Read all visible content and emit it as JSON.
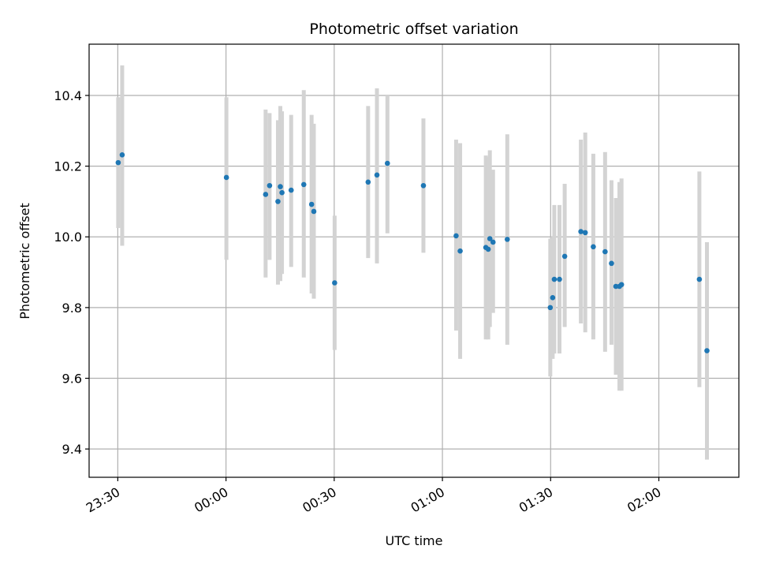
{
  "chart_data": {
    "type": "scatter",
    "title": "Photometric offset variation",
    "xlabel": "UTC time",
    "ylabel": "Photometric offset",
    "x_unit": "UTC time (HH:MM:SS)",
    "x_range": [
      "23:22:03",
      "02:22:11"
    ],
    "ylim": [
      9.32,
      10.545
    ],
    "grid": true,
    "x_ticks": [
      {
        "label": "23:30",
        "time": "23:30:00"
      },
      {
        "label": "00:00",
        "time": "00:00:00"
      },
      {
        "label": "00:30",
        "time": "00:30:00"
      },
      {
        "label": "01:00",
        "time": "01:00:00"
      },
      {
        "label": "01:30",
        "time": "01:30:00"
      },
      {
        "label": "02:00",
        "time": "02:00:00"
      }
    ],
    "y_ticks": [
      9.4,
      9.6,
      9.8,
      10.0,
      10.2,
      10.4
    ],
    "y_tick_labels": [
      "9.4",
      "9.6",
      "9.8",
      "10.0",
      "10.2",
      "10.4"
    ],
    "colors": {
      "point": "#1f77b4",
      "errorbar": "#d3d3d3",
      "grid": "#b0b0b0"
    },
    "points": [
      {
        "x": "23:30:07",
        "y": 10.21,
        "ylow": 10.025,
        "yhigh": 10.395
      },
      {
        "x": "23:31:13",
        "y": 10.232,
        "ylow": 9.975,
        "yhigh": 10.485
      },
      {
        "x": "00:00:07",
        "y": 10.168,
        "ylow": 9.935,
        "yhigh": 10.395
      },
      {
        "x": "00:10:59",
        "y": 10.12,
        "ylow": 9.885,
        "yhigh": 10.36
      },
      {
        "x": "00:12:05",
        "y": 10.145,
        "ylow": 9.935,
        "yhigh": 10.35
      },
      {
        "x": "00:14:24",
        "y": 10.1,
        "ylow": 9.865,
        "yhigh": 10.33
      },
      {
        "x": "00:15:04",
        "y": 10.142,
        "ylow": 9.875,
        "yhigh": 10.37
      },
      {
        "x": "00:15:31",
        "y": 10.125,
        "ylow": 9.895,
        "yhigh": 10.355
      },
      {
        "x": "00:18:04",
        "y": 10.132,
        "ylow": 9.915,
        "yhigh": 10.345
      },
      {
        "x": "00:21:34",
        "y": 10.148,
        "ylow": 9.885,
        "yhigh": 10.415
      },
      {
        "x": "00:23:44",
        "y": 10.092,
        "ylow": 9.84,
        "yhigh": 10.345
      },
      {
        "x": "00:24:21",
        "y": 10.072,
        "ylow": 9.825,
        "yhigh": 10.32
      },
      {
        "x": "00:30:07",
        "y": 9.87,
        "ylow": 9.68,
        "yhigh": 10.06
      },
      {
        "x": "00:39:24",
        "y": 10.155,
        "ylow": 9.94,
        "yhigh": 10.37
      },
      {
        "x": "00:41:51",
        "y": 10.175,
        "ylow": 9.925,
        "yhigh": 10.42
      },
      {
        "x": "00:44:45",
        "y": 10.208,
        "ylow": 10.01,
        "yhigh": 10.4
      },
      {
        "x": "00:54:44",
        "y": 10.145,
        "ylow": 9.955,
        "yhigh": 10.335
      },
      {
        "x": "01:03:48",
        "y": 10.003,
        "ylow": 9.735,
        "yhigh": 10.275
      },
      {
        "x": "01:04:55",
        "y": 9.96,
        "ylow": 9.655,
        "yhigh": 10.265
      },
      {
        "x": "01:12:02",
        "y": 9.97,
        "ylow": 9.71,
        "yhigh": 10.23
      },
      {
        "x": "01:12:42",
        "y": 9.965,
        "ylow": 9.71,
        "yhigh": 10.225
      },
      {
        "x": "01:13:09",
        "y": 9.995,
        "ylow": 9.745,
        "yhigh": 10.245
      },
      {
        "x": "01:14:02",
        "y": 9.985,
        "ylow": 9.785,
        "yhigh": 10.19
      },
      {
        "x": "01:17:59",
        "y": 9.993,
        "ylow": 9.695,
        "yhigh": 10.29
      },
      {
        "x": "01:29:54",
        "y": 9.8,
        "ylow": 9.605,
        "yhigh": 9.995
      },
      {
        "x": "01:30:34",
        "y": 9.828,
        "ylow": 9.655,
        "yhigh": 10.0
      },
      {
        "x": "01:31:01",
        "y": 9.88,
        "ylow": 9.67,
        "yhigh": 10.09
      },
      {
        "x": "01:32:27",
        "y": 9.88,
        "ylow": 9.67,
        "yhigh": 10.09
      },
      {
        "x": "01:33:54",
        "y": 9.945,
        "ylow": 9.745,
        "yhigh": 10.15
      },
      {
        "x": "01:38:23",
        "y": 10.015,
        "ylow": 9.755,
        "yhigh": 10.275
      },
      {
        "x": "01:39:36",
        "y": 10.012,
        "ylow": 9.73,
        "yhigh": 10.295
      },
      {
        "x": "01:41:50",
        "y": 9.972,
        "ylow": 9.71,
        "yhigh": 10.235
      },
      {
        "x": "01:45:06",
        "y": 9.958,
        "ylow": 9.675,
        "yhigh": 10.24
      },
      {
        "x": "01:46:52",
        "y": 9.925,
        "ylow": 9.695,
        "yhigh": 10.16
      },
      {
        "x": "01:48:05",
        "y": 9.86,
        "ylow": 9.61,
        "yhigh": 10.11
      },
      {
        "x": "01:49:05",
        "y": 9.86,
        "ylow": 9.565,
        "yhigh": 10.155
      },
      {
        "x": "01:49:39",
        "y": 9.865,
        "ylow": 9.565,
        "yhigh": 10.165
      },
      {
        "x": "02:11:14",
        "y": 9.88,
        "ylow": 9.575,
        "yhigh": 10.185
      },
      {
        "x": "02:13:20",
        "y": 9.678,
        "ylow": 9.37,
        "yhigh": 9.985
      }
    ]
  }
}
